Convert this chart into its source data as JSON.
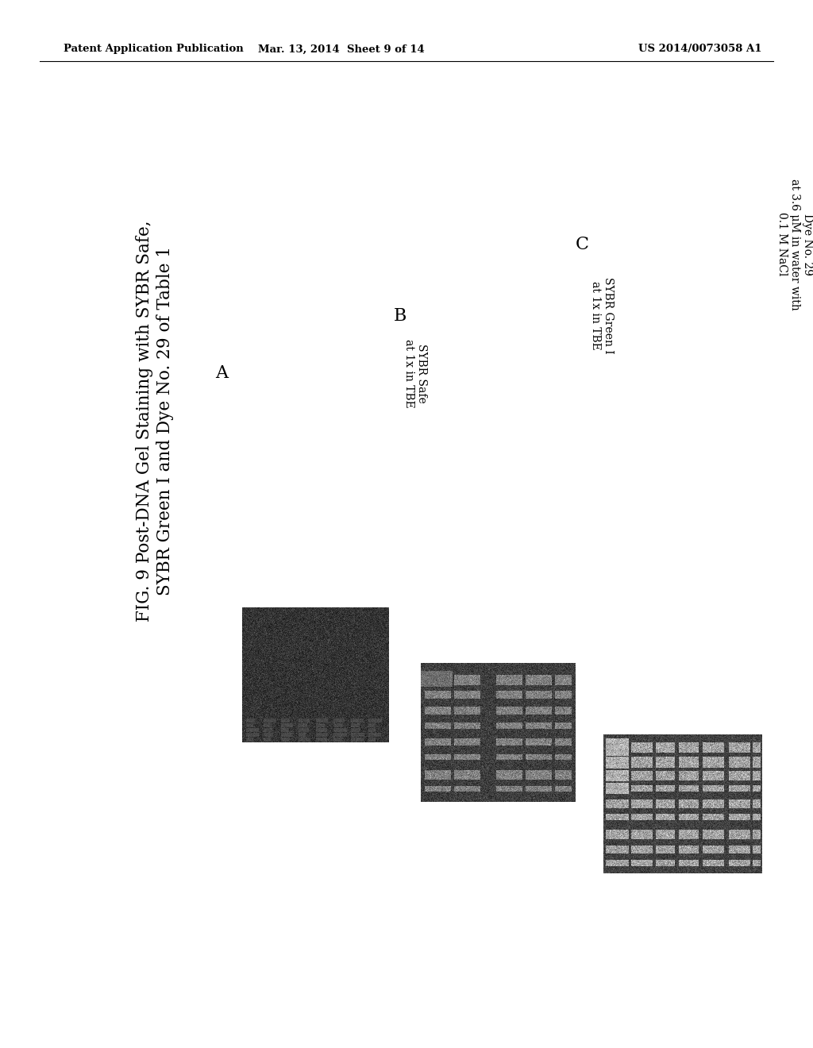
{
  "header_left": "Patent Application Publication",
  "header_mid": "Mar. 13, 2014  Sheet 9 of 14",
  "header_right": "US 2014/0073058 A1",
  "fig_title_line1": "FIG. 9 Post-DNA Gel Staining with SYBR Safe,",
  "fig_title_line2": "SYBR Green I and Dye No. 29 of Table 1",
  "label_A_line1": "SYBR Safe",
  "label_A_line2": "at 1x in TBE",
  "label_B_line1": "SYBR Green I",
  "label_B_line2": "at 1x in TBE",
  "label_C_line1": "Dye No. 29",
  "label_C_line2": "at 3.6 μM in water with",
  "label_C_line3": "0.1 M NaCl",
  "background_color": "#ffffff"
}
